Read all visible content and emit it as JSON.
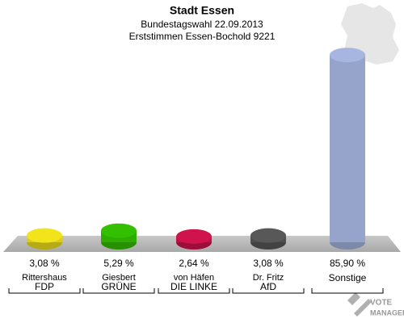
{
  "chart_data": {
    "type": "bar",
    "title": "Stadt Essen",
    "subtitle": "Bundestagswahl 22.09.2013",
    "subtitle2": "Erststimmen Essen-Bochold 9221",
    "categories": [
      "Rittershaus",
      "Giesbert",
      "von Häfen",
      "Dr. Fritz",
      "Sonstige"
    ],
    "parties": [
      "FDP",
      "GRÜNE",
      "DIE LINKE",
      "AfD",
      null
    ],
    "values": [
      3.08,
      5.29,
      2.64,
      3.08,
      85.9
    ],
    "value_labels": [
      "3,08 %",
      "5,29 %",
      "2,64 %",
      "3,08 %",
      "85,90 %"
    ],
    "colors": [
      "#f2e41a",
      "#33c000",
      "#d0134c",
      "#585858",
      "#a7b6e1"
    ],
    "watermark": [
      "VOTE",
      "MANAGER"
    ]
  }
}
